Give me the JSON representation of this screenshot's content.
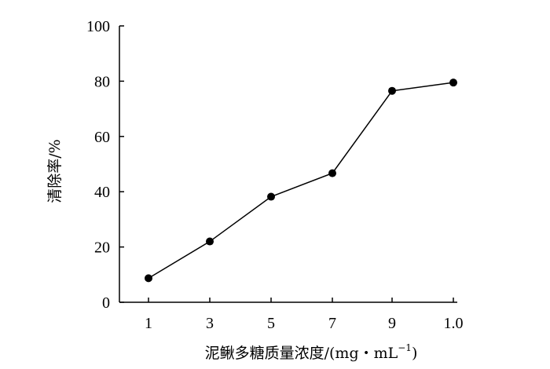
{
  "chart_data": {
    "type": "line",
    "title": "",
    "xlabel_main": "泥鳅多糖质量浓度/(mg・mL",
    "xlabel_sup": "−1",
    "xlabel_close": ")",
    "ylabel": "清除率/%",
    "x_tick_labels": [
      "1",
      "3",
      "5",
      "7",
      "9",
      "1.0"
    ],
    "categories": [
      "1",
      "3",
      "5",
      "7",
      "9",
      "1.0"
    ],
    "series": [
      {
        "values": [
          8.7,
          22.0,
          38.2,
          46.7,
          76.5,
          79.5
        ]
      }
    ],
    "y_ticks": [
      0,
      20,
      40,
      60,
      80,
      100
    ],
    "ylim": [
      0,
      100
    ],
    "grid": false,
    "legend": "none",
    "colors": {
      "line": "#000000",
      "marker": "#000000",
      "axis": "#000000"
    }
  }
}
